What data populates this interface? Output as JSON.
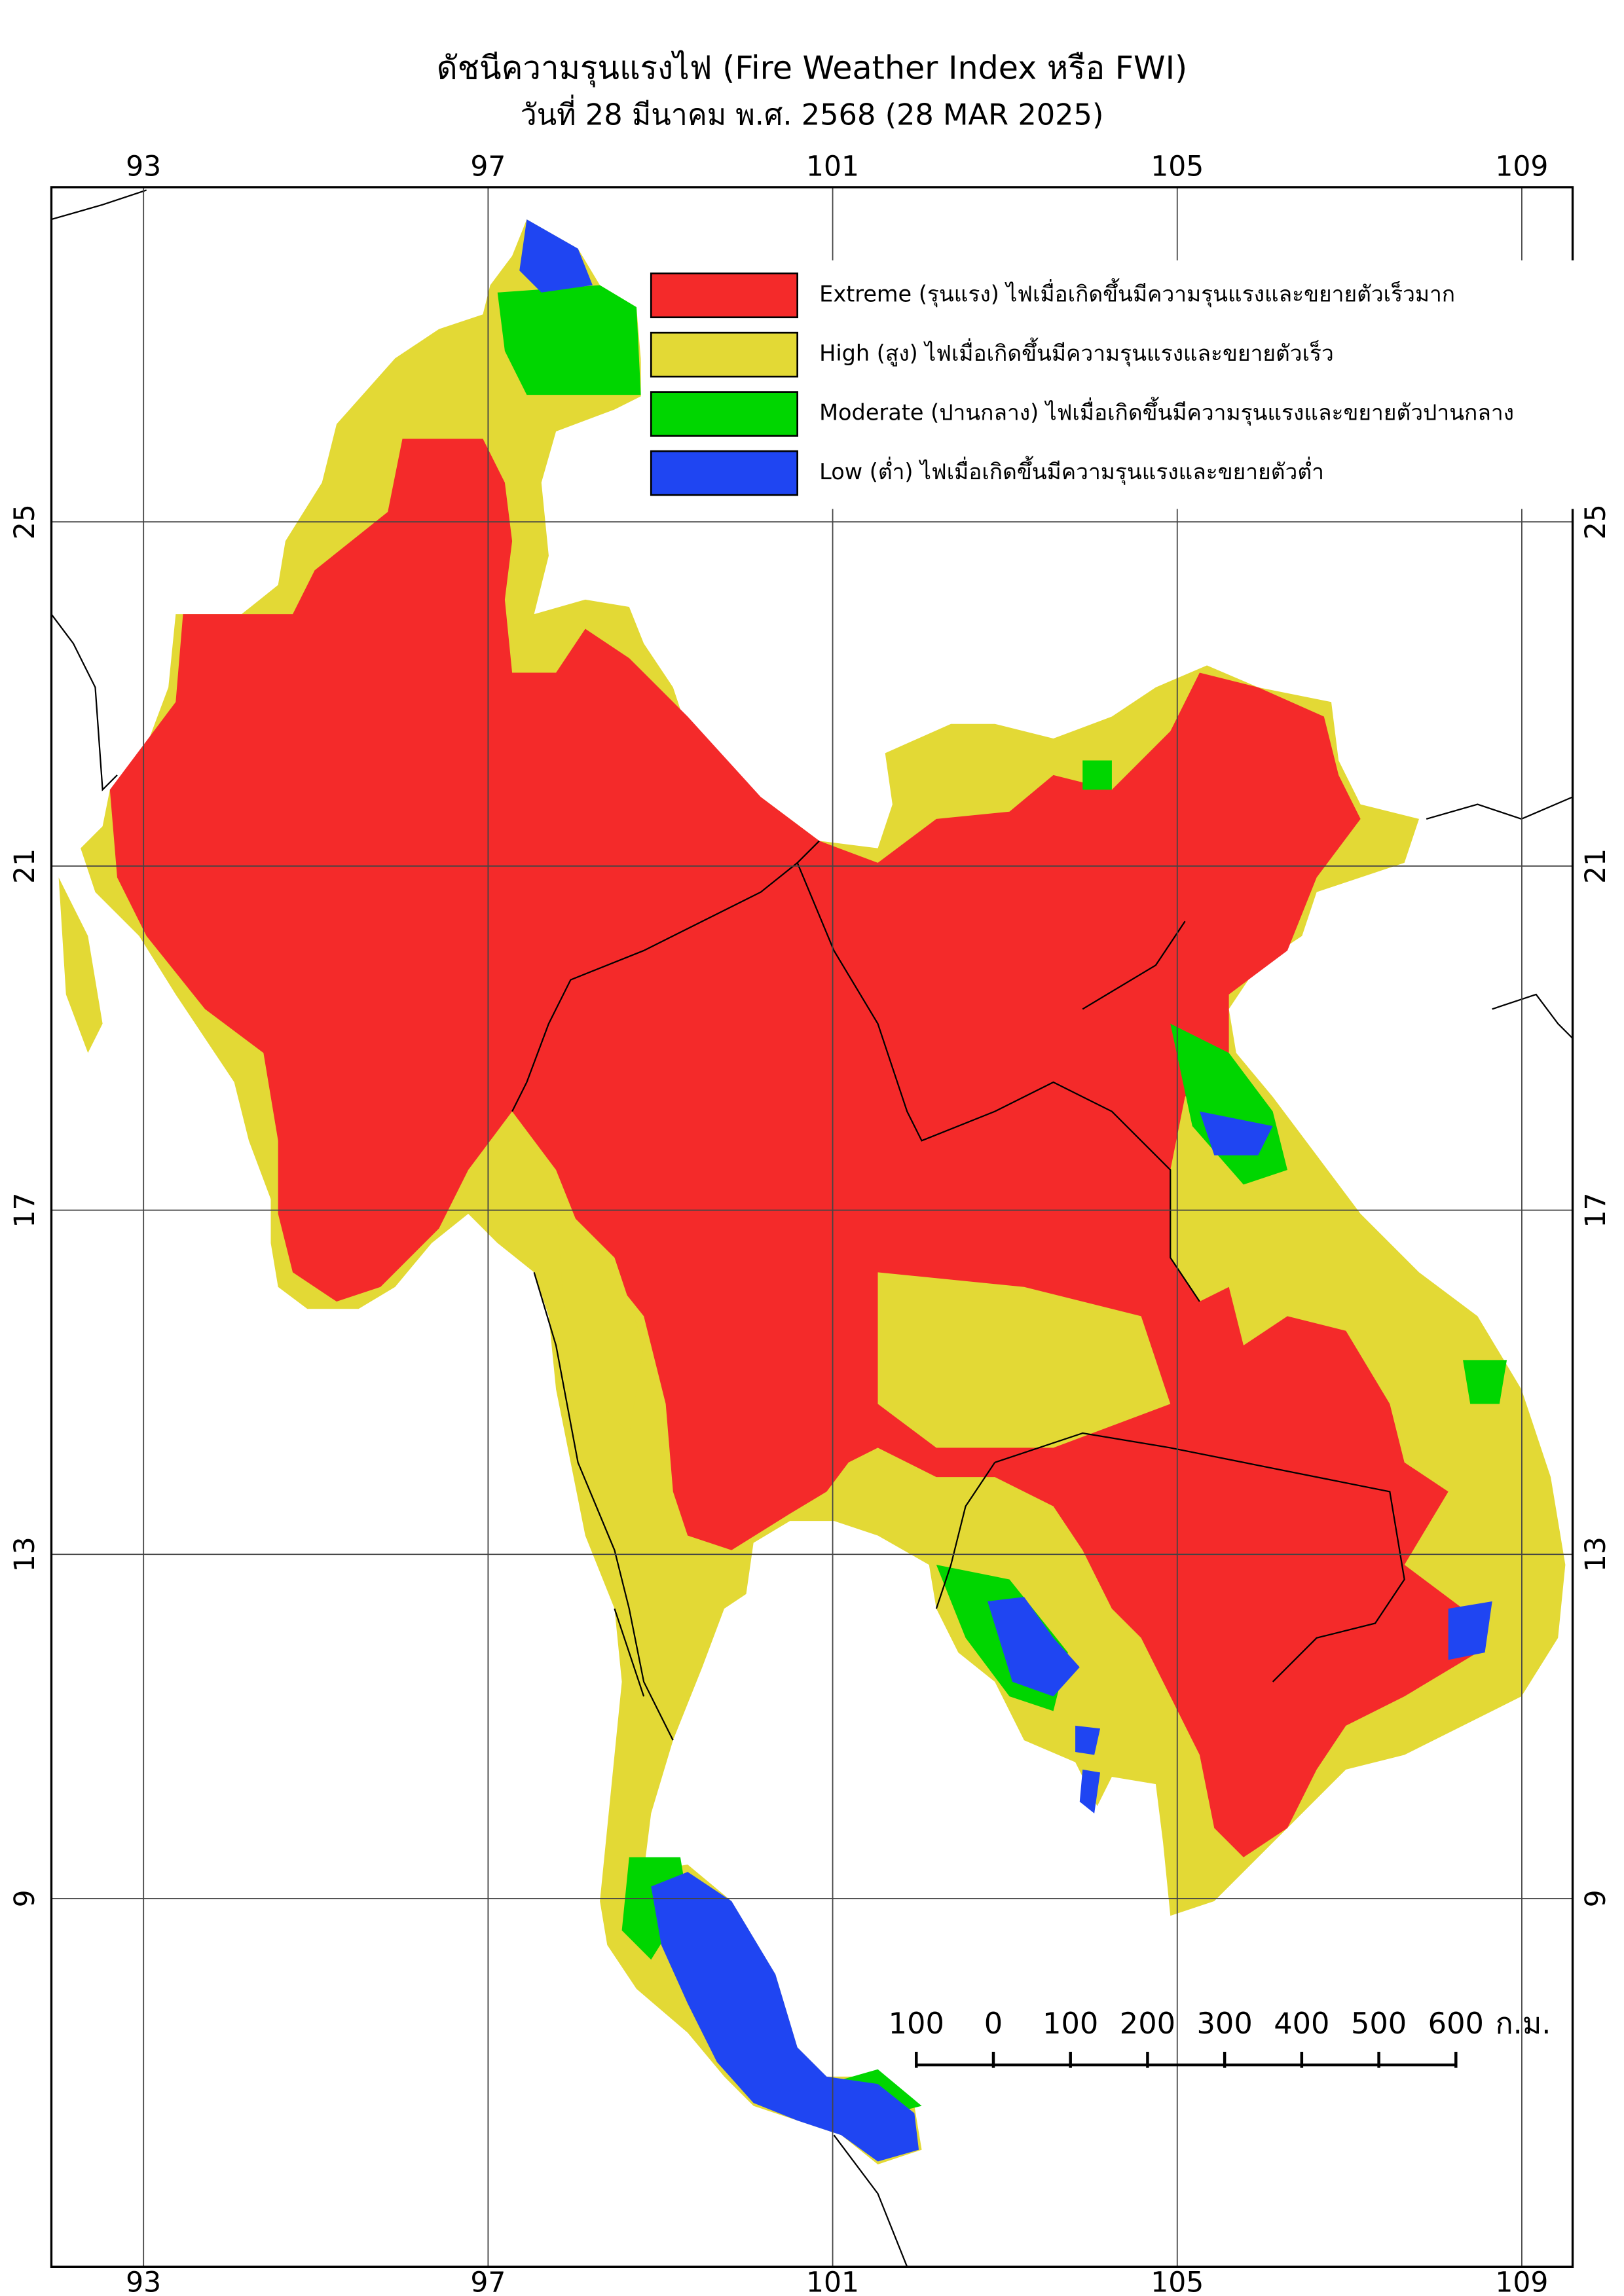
{
  "header": {
    "title": "ดัชนีความรุนแรงไฟ (Fire Weather Index หรือ FWI)",
    "subtitle": "วันที่ 28 มีนาคม พ.ศ. 2568 (28 MAR 2025)"
  },
  "map": {
    "xlim": [
      91.93,
      109.59
    ],
    "ylim": [
      28.89,
      4.72
    ],
    "xticks": [
      93,
      97,
      101,
      105,
      109
    ],
    "yticks": [
      25,
      21,
      17,
      13,
      9
    ],
    "grid": true
  },
  "legend": [
    {
      "label": "Extreme (รุนแรง) ไฟเมื่อเกิดขึ้นมีความรุนแรงและขยายตัวเร็วมาก",
      "color": "#f42a2a"
    },
    {
      "label": "High (สูง) ไฟเมื่อเกิดขึ้นมีความรุนแรงและขยายตัวเร็ว",
      "color": "#e3d935"
    },
    {
      "label": "Moderate (ปานกลาง) ไฟเมื่อเกิดขึ้นมีความรุนแรงและขยายตัวปานกลาง",
      "color": "#00d600"
    },
    {
      "label": "Low (ต่ำ) ไฟเมื่อเกิดขึ้นมีความรุนแรงและขยายตัวต่ำ",
      "color": "#1f45f2"
    }
  ],
  "scalebar": {
    "ticks": [
      {
        "value": -100,
        "label": "100"
      },
      0,
      100,
      200,
      300,
      400,
      500,
      600
    ],
    "unit": "ก.ม."
  }
}
